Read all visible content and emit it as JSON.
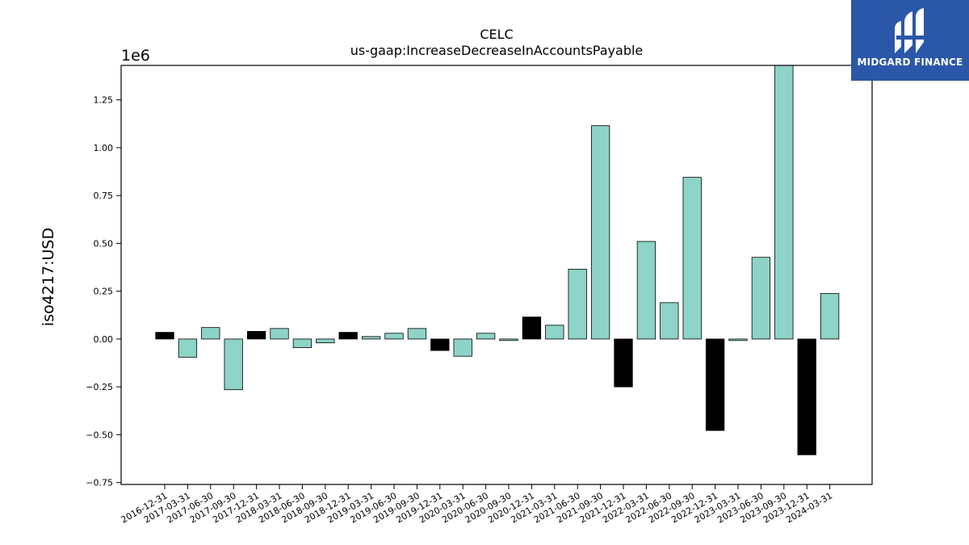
{
  "chart_data": {
    "type": "bar",
    "title": "CELC",
    "subtitle": "us-gaap:IncreaseDecreaseInAccountsPayable",
    "ylabel": "iso4217:USD",
    "xlabel": "",
    "scale_label": "1e6",
    "ylim": [
      -0.76,
      1.43
    ],
    "yticks": [
      -0.75,
      -0.5,
      -0.25,
      0.0,
      0.25,
      0.5,
      0.75,
      1.0,
      1.25
    ],
    "ytick_labels": [
      "−0.75",
      "−0.50",
      "−0.25",
      "0.00",
      "0.25",
      "0.50",
      "0.75",
      "1.00",
      "1.25"
    ],
    "grid": false,
    "categories": [
      "2016-12-31",
      "2017-03-31",
      "2017-06-30",
      "2017-09-30",
      "2017-12-31",
      "2018-03-31",
      "2018-06-30",
      "2018-09-30",
      "2018-12-31",
      "2019-03-31",
      "2019-06-30",
      "2019-09-30",
      "2019-12-31",
      "2020-03-31",
      "2020-06-30",
      "2020-09-30",
      "2020-12-31",
      "2021-03-31",
      "2021-06-30",
      "2021-09-30",
      "2021-12-31",
      "2022-03-31",
      "2022-06-30",
      "2022-09-30",
      "2022-12-31",
      "2023-03-31",
      "2023-06-30",
      "2023-09-30",
      "2023-12-31",
      "2024-03-31"
    ],
    "values": [
      0.035,
      -0.095,
      0.06,
      -0.265,
      0.04,
      0.055,
      -0.045,
      -0.02,
      0.035,
      0.013,
      0.03,
      0.055,
      -0.06,
      -0.09,
      0.03,
      -0.008,
      0.115,
      0.072,
      0.365,
      1.115,
      -0.25,
      0.51,
      0.19,
      0.845,
      -0.478,
      -0.008,
      0.427,
      1.43,
      -0.605,
      0.238
    ],
    "bar_kinds": [
      "q4",
      "q",
      "q",
      "q",
      "q4",
      "q",
      "q",
      "q",
      "q4",
      "q",
      "q",
      "q",
      "q4",
      "q",
      "q",
      "q",
      "q4",
      "q",
      "q",
      "q",
      "q4",
      "q",
      "q",
      "q",
      "q4",
      "q",
      "q",
      "q",
      "q4",
      "q"
    ],
    "colors": {
      "quarter": "#8dd3c7",
      "fiscal_q4": "#000000",
      "edge": "#000000"
    }
  },
  "logo": {
    "text": "MIDGARD FINANCE",
    "icon": "midgard-logo-icon",
    "background": "#2b57a8"
  }
}
